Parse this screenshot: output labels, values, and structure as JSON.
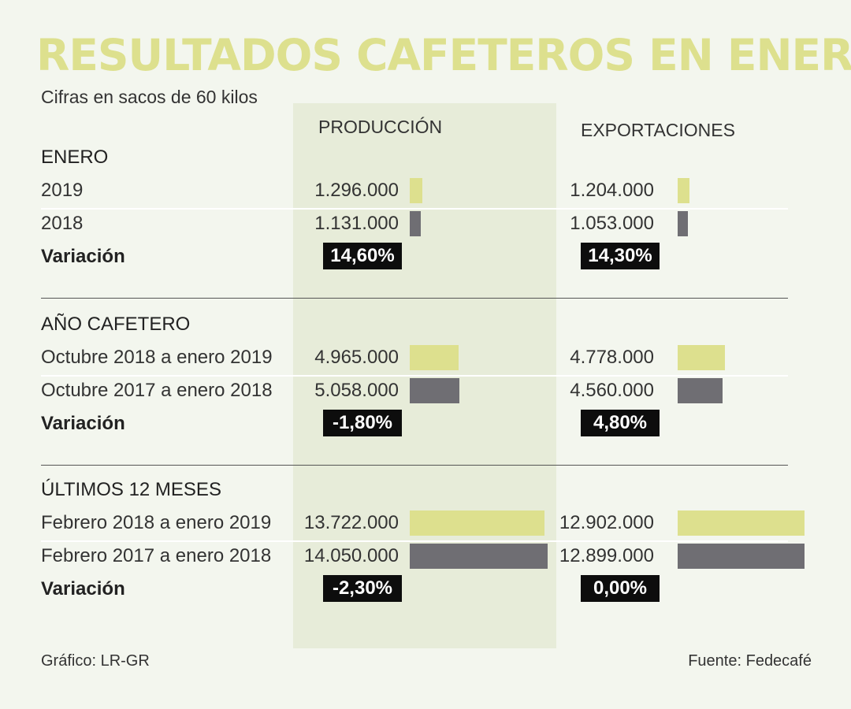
{
  "title": "RESULTADOS CAFETEROS EN ENERO",
  "subtitle": "Cifras en sacos de 60 kilos",
  "columns": {
    "produccion": "PRODUCCIÓN",
    "exportaciones": "EXPORTACIONES"
  },
  "colors": {
    "current": "#dde08e",
    "previous": "#6f6e73",
    "band": "#e7ecd9",
    "badge": "#0d0d0d"
  },
  "variacion_label": "Variación",
  "chart_data": {
    "type": "bar",
    "orientation": "horizontal",
    "unit": "sacos de 60 kilos",
    "sections": [
      {
        "heading": "ENERO",
        "rows": [
          {
            "label": "2019",
            "series": "current",
            "produccion": 1296000,
            "produccion_text": "1.296.000",
            "exportaciones": 1204000,
            "exportaciones_text": "1.204.000"
          },
          {
            "label": "2018",
            "series": "previous",
            "produccion": 1131000,
            "produccion_text": "1.131.000",
            "exportaciones": 1053000,
            "exportaciones_text": "1.053.000"
          }
        ],
        "variacion": {
          "produccion": "14,60%",
          "exportaciones": "14,30%"
        }
      },
      {
        "heading": "AÑO CAFETERO",
        "rows": [
          {
            "label": "Octubre 2018 a enero 2019",
            "series": "current",
            "produccion": 4965000,
            "produccion_text": "4.965.000",
            "exportaciones": 4778000,
            "exportaciones_text": "4.778.000"
          },
          {
            "label": "Octubre 2017 a enero 2018",
            "series": "previous",
            "produccion": 5058000,
            "produccion_text": "5.058.000",
            "exportaciones": 4560000,
            "exportaciones_text": "4.560.000"
          }
        ],
        "variacion": {
          "produccion": "-1,80%",
          "exportaciones": "4,80%"
        }
      },
      {
        "heading": "ÚLTIMOS 12 MESES",
        "rows": [
          {
            "label": "Febrero 2018 a enero 2019",
            "series": "current",
            "produccion": 13722000,
            "produccion_text": "13.722.000",
            "exportaciones": 12902000,
            "exportaciones_text": "12.902.000"
          },
          {
            "label": "Febrero 2017 a enero 2018",
            "series": "previous",
            "produccion": 14050000,
            "produccion_text": "14.050.000",
            "exportaciones": 12899000,
            "exportaciones_text": "12.899.000"
          }
        ],
        "variacion": {
          "produccion": "-2,30%",
          "exportaciones": "0,00%"
        }
      }
    ]
  },
  "footer": {
    "left": "Gráfico: LR-GR",
    "right": "Fuente: Fedecafé"
  }
}
